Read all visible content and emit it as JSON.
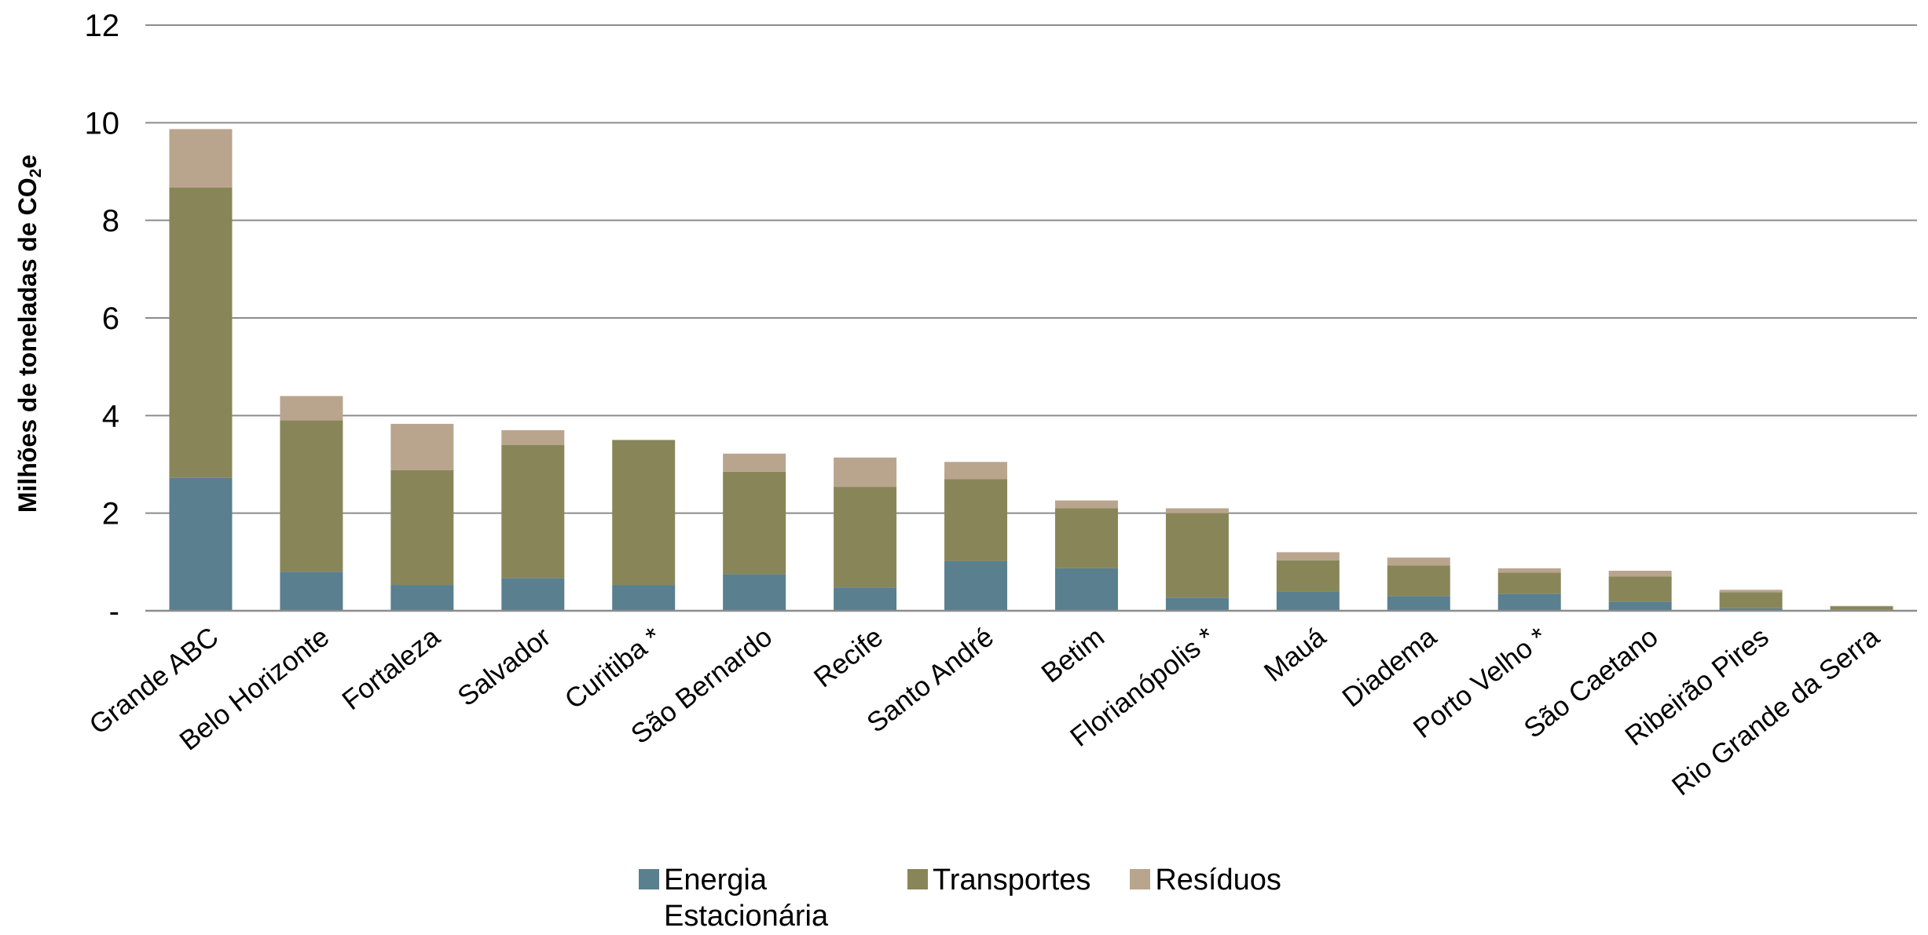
{
  "chart_data": {
    "type": "bar",
    "stacked": true,
    "title": "",
    "xlabel": "",
    "ylabel": "Milhões de toneladas de CO",
    "ylabel_subscript": "2",
    "ylabel_suffix": "e",
    "ylim": [
      0,
      12
    ],
    "yticks": [
      0,
      2,
      4,
      6,
      8,
      10,
      12
    ],
    "ytick_labels": [
      "-",
      "2",
      "4",
      "6",
      "8",
      "10",
      "12"
    ],
    "grid": true,
    "legend_position": "bottom",
    "categories": [
      "Grande ABC",
      "Belo Horizonte",
      "Fortaleza",
      "Salvador",
      "Curitiba *",
      "São Bernardo",
      "Recife",
      "Santo André",
      "Betim",
      "Florianópolis *",
      "Mauá",
      "Diadema",
      "Porto Velho *",
      "São Caetano",
      "Ribeirão Pires",
      "Rio Grande da Serra"
    ],
    "series": [
      {
        "name": "Energia Estacionária",
        "color": "#5a7f8f",
        "values": [
          2.72,
          0.8,
          0.53,
          0.67,
          0.53,
          0.75,
          0.48,
          1.02,
          0.87,
          0.27,
          0.4,
          0.3,
          0.35,
          0.19,
          0.05,
          0.02
        ]
      },
      {
        "name": "Transportes",
        "color": "#888659",
        "values": [
          5.95,
          3.1,
          2.35,
          2.73,
          2.97,
          2.1,
          2.06,
          1.68,
          1.23,
          1.73,
          0.63,
          0.63,
          0.43,
          0.51,
          0.33,
          0.07
        ]
      },
      {
        "name": "Resíduos",
        "color": "#b9a58e",
        "values": [
          1.2,
          0.5,
          0.95,
          0.3,
          0.0,
          0.37,
          0.6,
          0.35,
          0.16,
          0.1,
          0.17,
          0.16,
          0.09,
          0.12,
          0.05,
          0.01
        ]
      }
    ]
  }
}
